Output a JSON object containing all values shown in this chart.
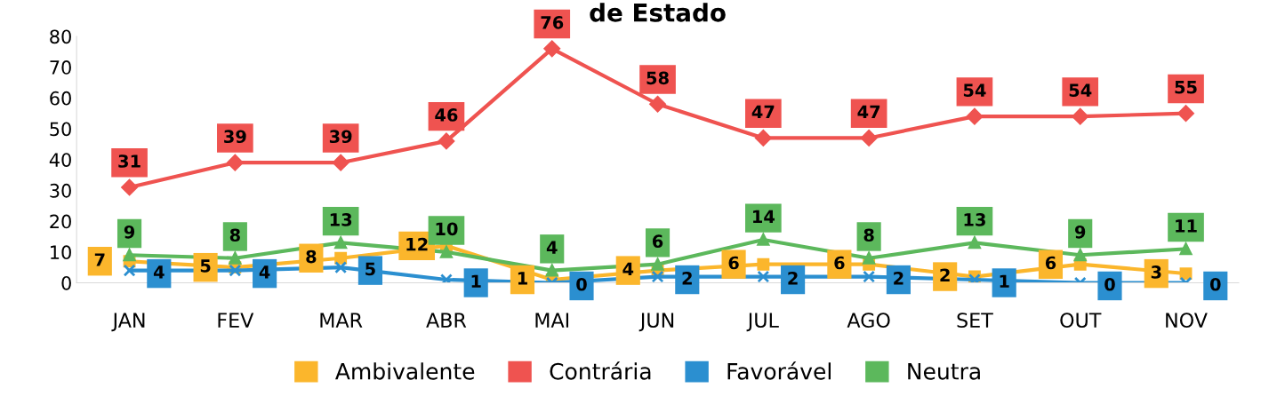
{
  "chart_data": {
    "type": "line",
    "title": "de Estado",
    "categories": [
      "JAN",
      "FEV",
      "MAR",
      "ABR",
      "MAI",
      "JUN",
      "JUL",
      "AGO",
      "SET",
      "OUT",
      "NOV"
    ],
    "series": [
      {
        "name": "Ambivalente",
        "color": "#fbb62c",
        "marker": "square",
        "values": [
          7,
          5,
          8,
          12,
          1,
          4,
          6,
          6,
          2,
          6,
          3
        ]
      },
      {
        "name": "Contrária",
        "color": "#ef5350",
        "marker": "diamond",
        "values": [
          31,
          39,
          39,
          46,
          76,
          58,
          47,
          47,
          54,
          54,
          55
        ]
      },
      {
        "name": "Favorável",
        "color": "#2b8fd0",
        "marker": "cross",
        "values": [
          4,
          4,
          5,
          1,
          0,
          2,
          2,
          2,
          1,
          0,
          0
        ]
      },
      {
        "name": "Neutra",
        "color": "#5cb85c",
        "marker": "triangle",
        "values": [
          9,
          8,
          13,
          10,
          4,
          6,
          14,
          8,
          13,
          9,
          11
        ]
      }
    ],
    "ylim": [
      0,
      80
    ],
    "yticks": [
      0,
      10,
      20,
      30,
      40,
      50,
      60,
      70,
      80
    ],
    "grid": false,
    "legend": "bottom",
    "data_labels": true,
    "line_style": "solid"
  }
}
